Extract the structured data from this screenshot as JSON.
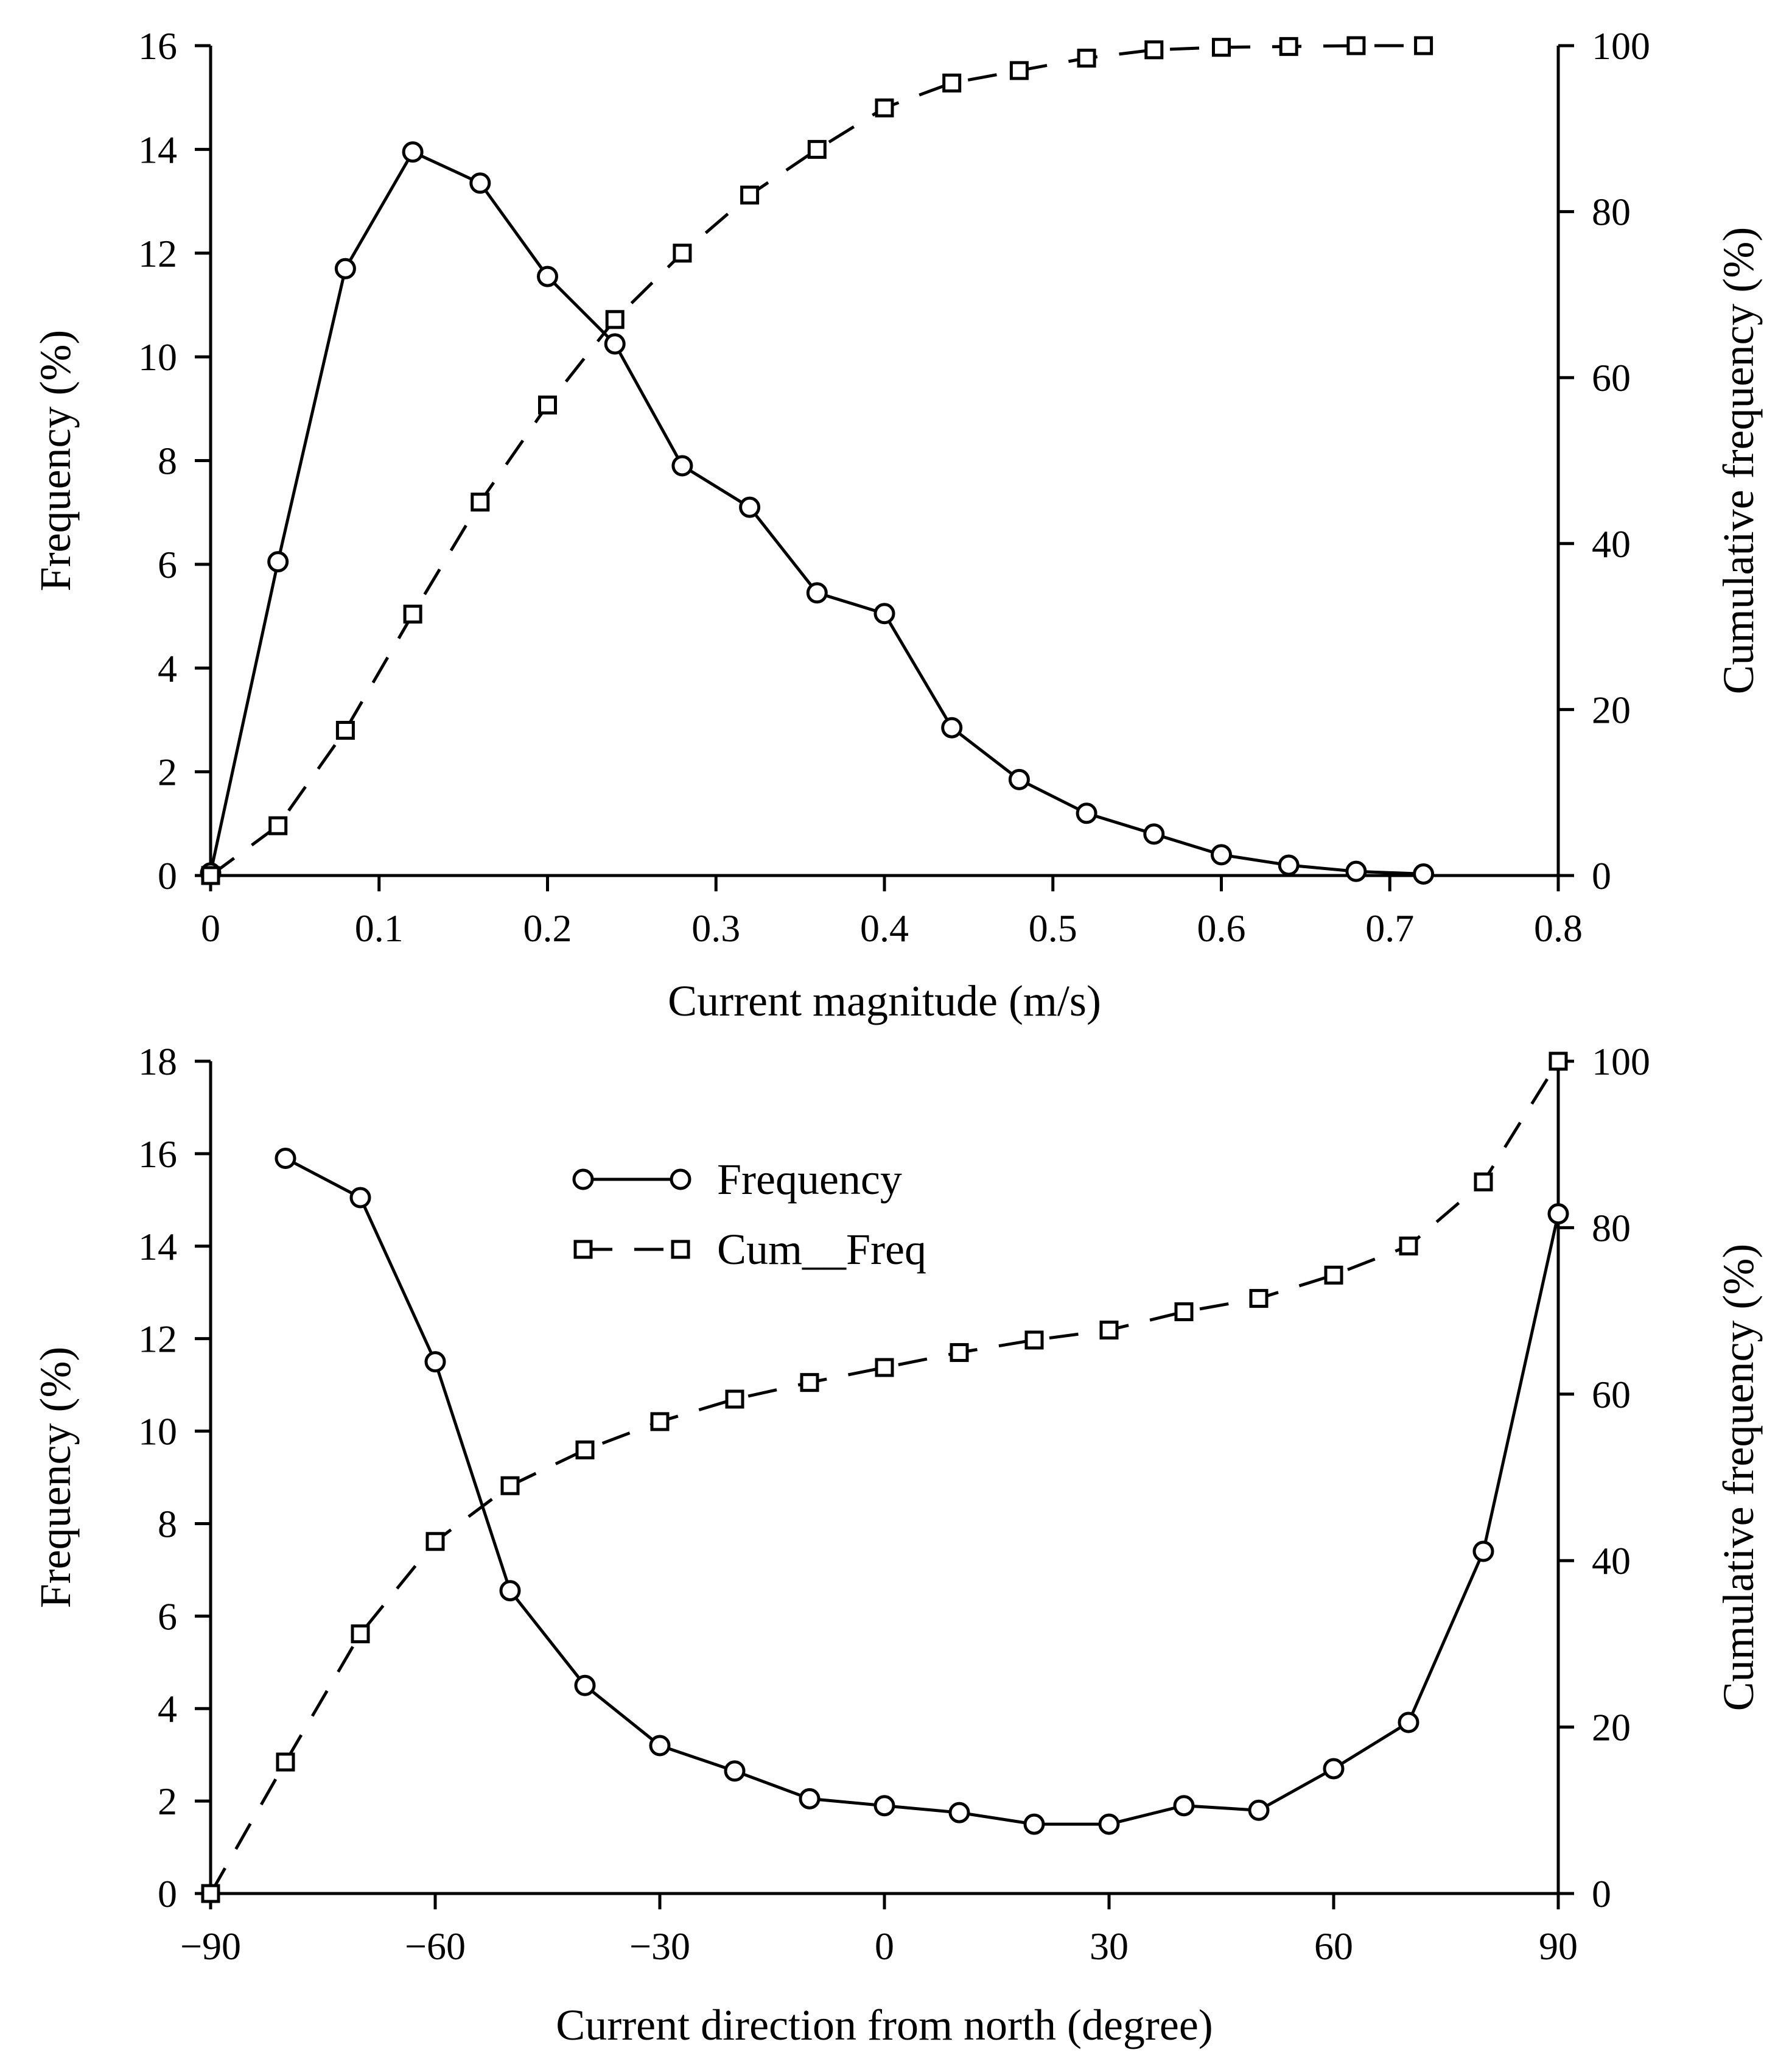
{
  "chart_data": [
    {
      "type": "line",
      "name": "magnitude",
      "xlabel": "Current magnitude (m/s)",
      "ylabel": "Frequency (%)",
      "y2label": "Cumulative frequency (%)",
      "xlim": [
        0,
        0.8
      ],
      "ylim": [
        0,
        16
      ],
      "y2lim": [
        0,
        100
      ],
      "xticks": [
        0,
        0.1,
        0.2,
        0.3,
        0.4,
        0.5,
        0.6,
        0.7,
        0.8
      ],
      "xtick_labels": [
        "0",
        "0.1",
        "0.2",
        "0.3",
        "0.4",
        "0.5",
        "0.6",
        "0.7",
        "0.8"
      ],
      "yticks": [
        0,
        2,
        4,
        6,
        8,
        10,
        12,
        14,
        16
      ],
      "ytick_labels": [
        "0",
        "2",
        "4",
        "6",
        "8",
        "10",
        "12",
        "14",
        "16"
      ],
      "y2ticks": [
        0,
        20,
        40,
        60,
        80,
        100
      ],
      "y2tick_labels": [
        "0",
        "20",
        "40",
        "60",
        "80",
        "100"
      ],
      "legend": false,
      "series": [
        {
          "name": "Frequency",
          "axis": "left",
          "marker": "circle",
          "dash": "solid",
          "x": [
            0,
            0.04,
            0.08,
            0.12,
            0.16,
            0.2,
            0.24,
            0.28,
            0.32,
            0.36,
            0.4,
            0.44,
            0.48,
            0.52,
            0.56,
            0.6,
            0.64,
            0.68,
            0.72
          ],
          "values": [
            0.05,
            6.05,
            11.7,
            13.95,
            13.35,
            11.55,
            10.25,
            7.9,
            7.1,
            5.45,
            5.05,
            2.85,
            1.85,
            1.2,
            0.8,
            0.4,
            0.2,
            0.08,
            0.03
          ]
        },
        {
          "name": "Cum__Freq",
          "axis": "right",
          "marker": "square",
          "dash": "dashed",
          "x": [
            0,
            0.04,
            0.08,
            0.12,
            0.16,
            0.2,
            0.24,
            0.28,
            0.32,
            0.36,
            0.4,
            0.44,
            0.48,
            0.52,
            0.56,
            0.6,
            0.64,
            0.68,
            0.72
          ],
          "values": [
            0,
            6,
            17.5,
            31.5,
            45,
            56.7,
            67,
            75,
            82,
            87.5,
            92.5,
            95.5,
            97,
            98.5,
            99.5,
            99.8,
            99.9,
            100,
            100
          ]
        }
      ]
    },
    {
      "type": "line",
      "name": "direction",
      "xlabel": "Current direction from north (degree)",
      "ylabel": "Frequency (%)",
      "y2label": "Cumulative frequency (%)",
      "xlim": [
        -90,
        90
      ],
      "ylim": [
        0,
        18
      ],
      "y2lim": [
        0,
        100
      ],
      "xticks": [
        -90,
        -60,
        -30,
        0,
        30,
        60,
        90
      ],
      "xtick_labels": [
        "−90",
        "−60",
        "−30",
        "0",
        "30",
        "60",
        "90"
      ],
      "yticks": [
        0,
        2,
        4,
        6,
        8,
        10,
        12,
        14,
        16,
        18
      ],
      "ytick_labels": [
        "0",
        "2",
        "4",
        "6",
        "8",
        "10",
        "12",
        "14",
        "16",
        "18"
      ],
      "y2ticks": [
        0,
        20,
        40,
        60,
        80,
        100
      ],
      "y2tick_labels": [
        "0",
        "20",
        "40",
        "60",
        "80",
        "100"
      ],
      "legend": true,
      "legend_position": "top-center",
      "series": [
        {
          "name": "Frequency",
          "axis": "left",
          "marker": "circle",
          "dash": "solid",
          "x": [
            -80,
            -70,
            -60,
            -50,
            -40,
            -30,
            -20,
            -10,
            0,
            10,
            20,
            30,
            40,
            50,
            60,
            70,
            80,
            90
          ],
          "values": [
            15.9,
            15.05,
            11.5,
            6.55,
            4.5,
            3.2,
            2.65,
            2.05,
            1.9,
            1.75,
            1.5,
            1.5,
            1.9,
            1.8,
            2.7,
            3.7,
            7.4,
            14.7
          ]
        },
        {
          "name": "Cum__Freq",
          "axis": "right",
          "marker": "square",
          "dash": "dashed",
          "x": [
            -90,
            -80,
            -70,
            -60,
            -50,
            -40,
            -30,
            -20,
            -10,
            0,
            10,
            20,
            30,
            40,
            50,
            60,
            70,
            80,
            90
          ],
          "values": [
            0,
            15.8,
            31.2,
            42.3,
            49,
            53.3,
            56.7,
            59.4,
            61.4,
            63.2,
            65,
            66.5,
            67.7,
            69.9,
            71.5,
            74.3,
            77.8,
            85.5,
            100
          ]
        }
      ]
    }
  ]
}
